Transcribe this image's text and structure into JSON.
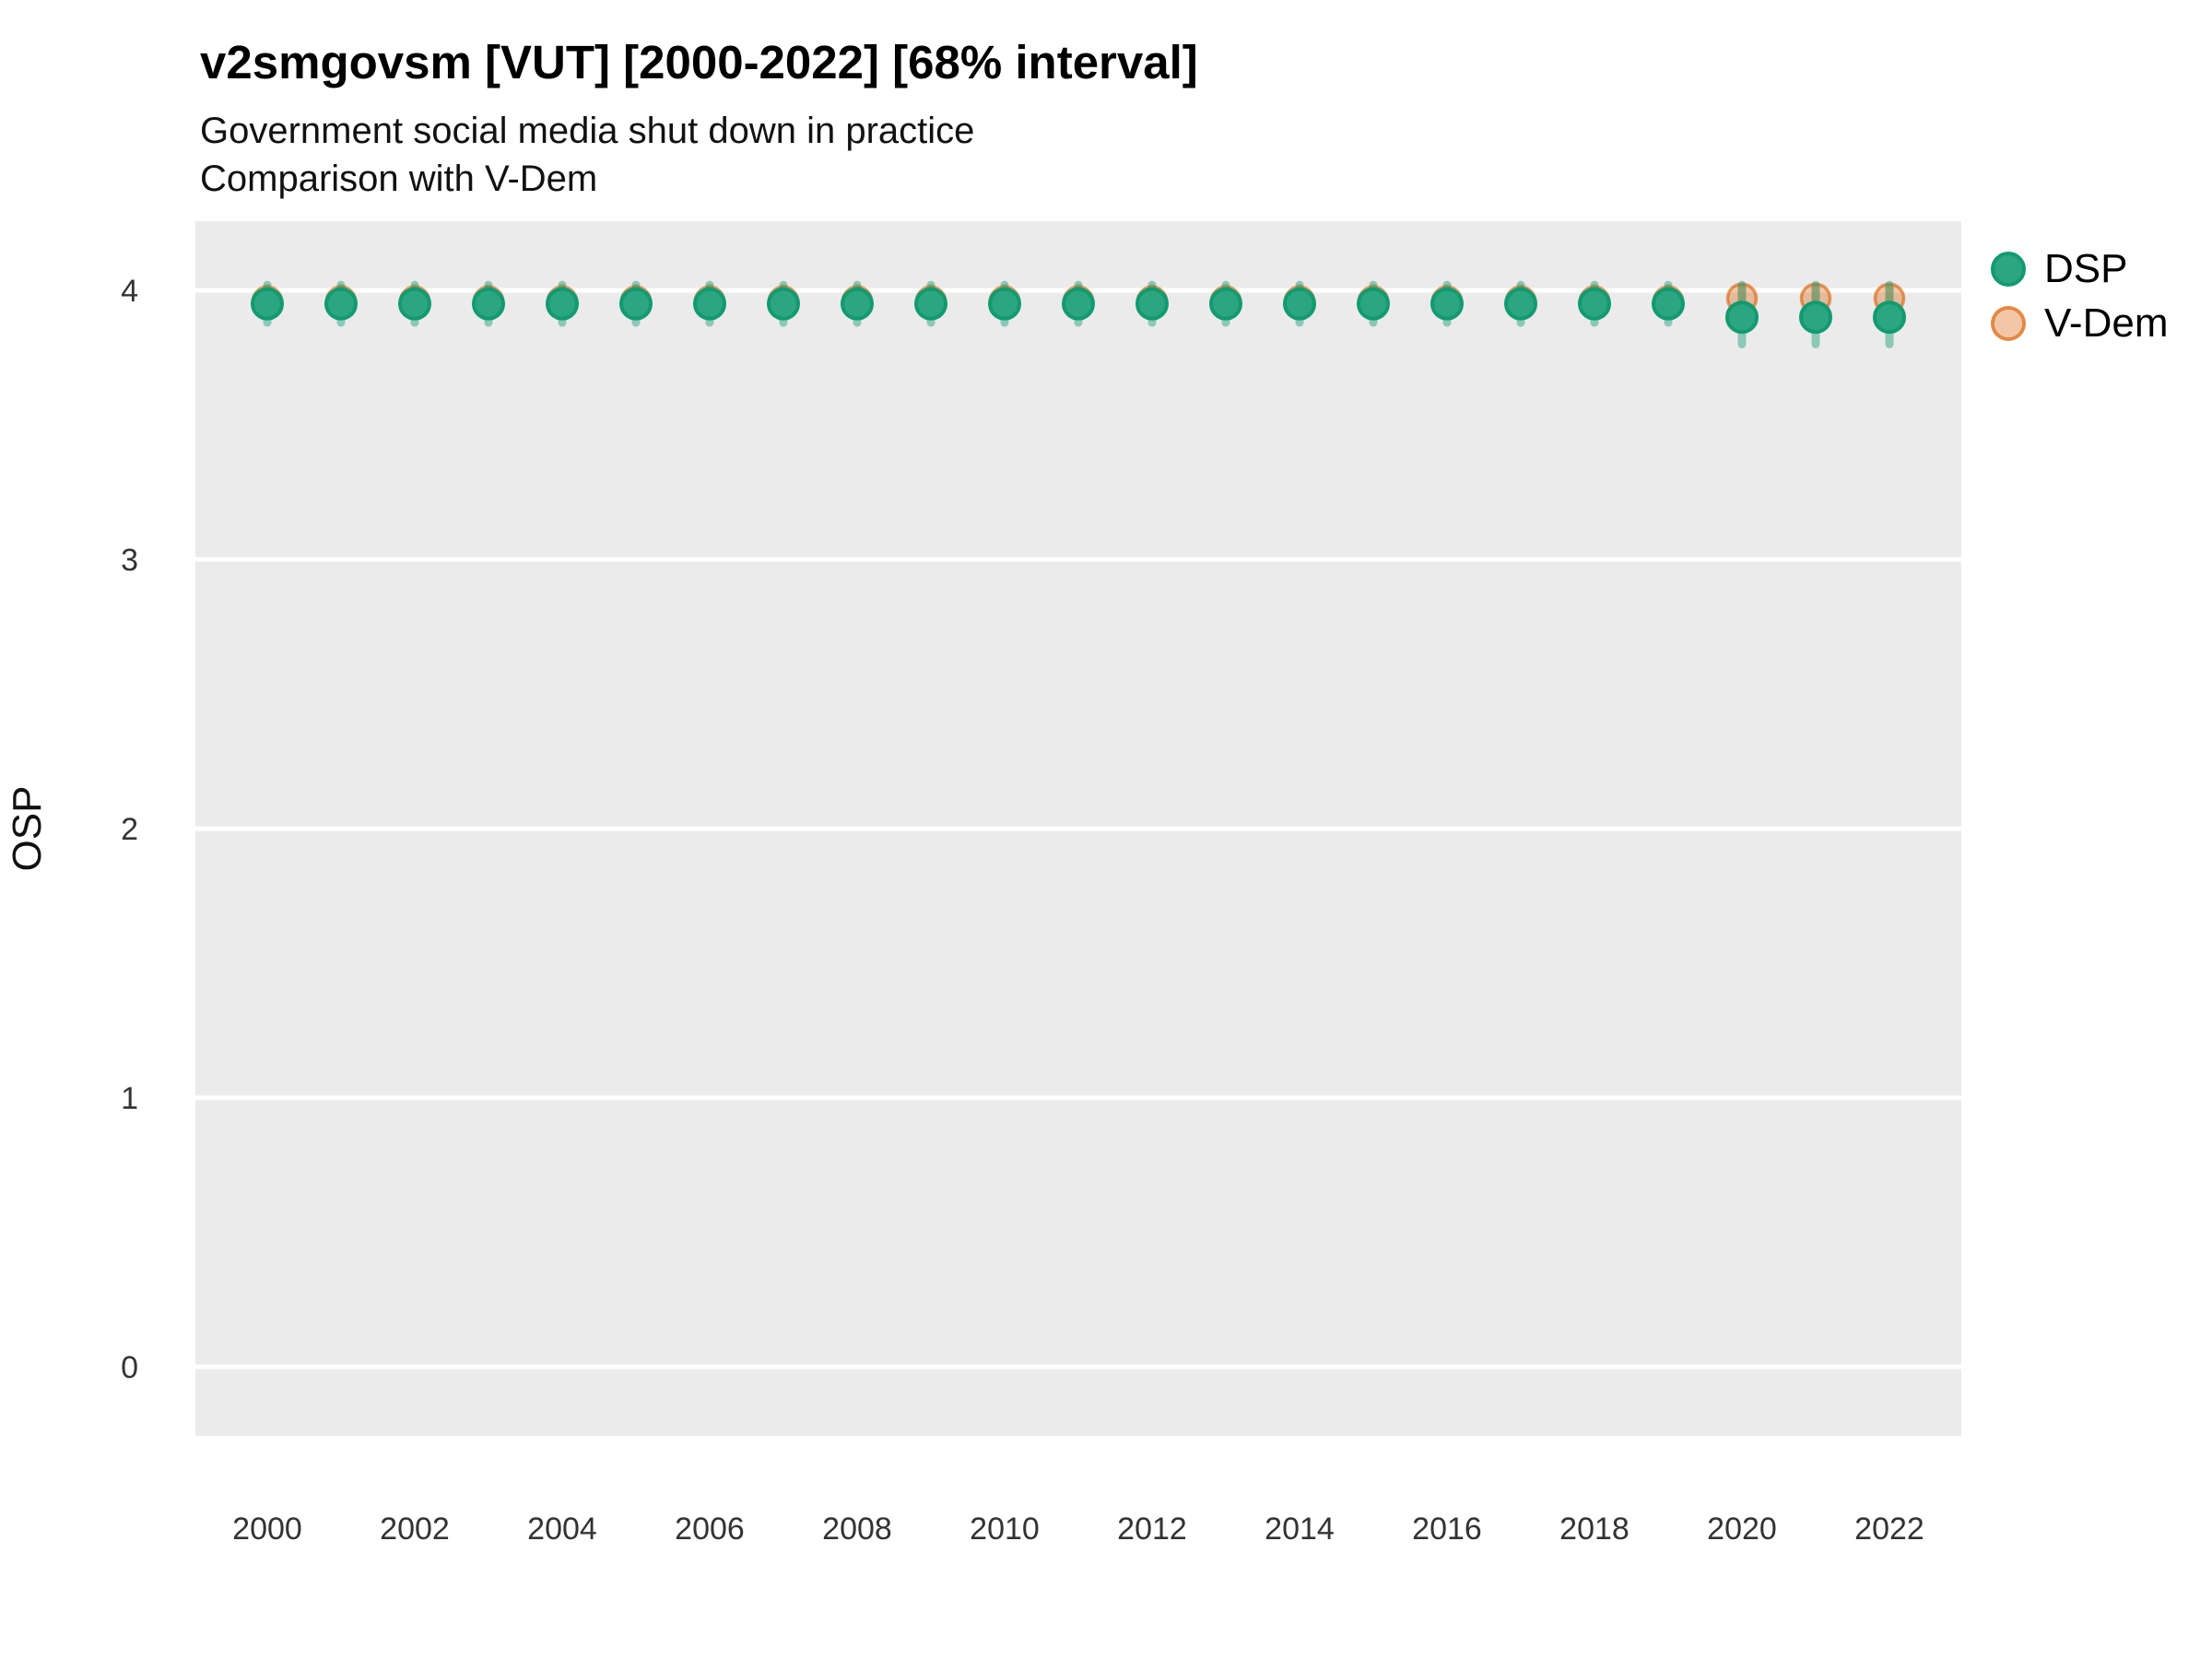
{
  "colors": {
    "dsp_fill": "#2CA680",
    "dsp_stroke": "#129A70",
    "dsp_interval": "rgba(27,158,119,0.45)",
    "vdem_fill": "rgba(217,95,2,0.35)",
    "vdem_stroke": "rgba(217,95,2,0.60)",
    "vdem_interval": "rgba(217,95,2,0.30)",
    "panel_bg": "#EBEBEB",
    "grid": "#FFFFFF",
    "title_text": "#000000",
    "tick_text": "#333333"
  },
  "chart_data": {
    "type": "scatter",
    "title": "v2smgovsm [VUT] [2000-2022] [68% interval]",
    "subtitle": [
      "Government social media shut down in practice",
      "Comparison with V-Dem"
    ],
    "ylabel": "OSP",
    "xlabel": "",
    "interval": "68%",
    "grid": "horizontal-major-only",
    "legend_position": "right",
    "x": [
      2000,
      2001,
      2002,
      2003,
      2004,
      2005,
      2006,
      2007,
      2008,
      2009,
      2010,
      2011,
      2012,
      2013,
      2014,
      2015,
      2016,
      2017,
      2018,
      2019,
      2020,
      2021,
      2022
    ],
    "x_tick_labels": [
      "2000",
      "2002",
      "2004",
      "2006",
      "2008",
      "2010",
      "2012",
      "2014",
      "2016",
      "2018",
      "2020",
      "2022"
    ],
    "y_ticks": [
      0,
      1,
      2,
      3,
      4
    ],
    "ylim": [
      -0.26,
      4.26
    ],
    "series": [
      {
        "name": "DSP",
        "color": "#1B9E77",
        "est": [
          3.95,
          3.95,
          3.95,
          3.95,
          3.95,
          3.95,
          3.95,
          3.95,
          3.95,
          3.95,
          3.95,
          3.95,
          3.95,
          3.95,
          3.95,
          3.95,
          3.95,
          3.95,
          3.95,
          3.95,
          3.9,
          3.9,
          3.9
        ],
        "lo": [
          3.88,
          3.88,
          3.88,
          3.88,
          3.88,
          3.88,
          3.88,
          3.88,
          3.88,
          3.88,
          3.88,
          3.88,
          3.88,
          3.88,
          3.88,
          3.88,
          3.88,
          3.88,
          3.88,
          3.88,
          3.8,
          3.8,
          3.8
        ],
        "hi": [
          4.02,
          4.02,
          4.02,
          4.02,
          4.02,
          4.02,
          4.02,
          4.02,
          4.02,
          4.02,
          4.02,
          4.02,
          4.02,
          4.02,
          4.02,
          4.02,
          4.02,
          4.02,
          4.02,
          4.02,
          4.02,
          4.02,
          4.02
        ]
      },
      {
        "name": "V-Dem",
        "color": "#D95F02",
        "est": [
          3.96,
          3.96,
          3.96,
          3.96,
          3.96,
          3.96,
          3.96,
          3.96,
          3.96,
          3.96,
          3.96,
          3.96,
          3.96,
          3.96,
          3.96,
          3.96,
          3.96,
          3.96,
          3.96,
          3.96,
          3.97,
          3.97,
          3.97
        ],
        "lo": [
          3.93,
          3.93,
          3.93,
          3.93,
          3.93,
          3.93,
          3.93,
          3.93,
          3.93,
          3.93,
          3.93,
          3.93,
          3.93,
          3.93,
          3.93,
          3.93,
          3.93,
          3.93,
          3.93,
          3.93,
          3.93,
          3.93,
          3.93
        ],
        "hi": [
          4.01,
          4.01,
          4.01,
          4.01,
          4.01,
          4.01,
          4.01,
          4.01,
          4.01,
          4.01,
          4.01,
          4.01,
          4.01,
          4.01,
          4.01,
          4.01,
          4.01,
          4.01,
          4.01,
          4.01,
          4.01,
          4.01,
          4.01
        ]
      }
    ]
  }
}
